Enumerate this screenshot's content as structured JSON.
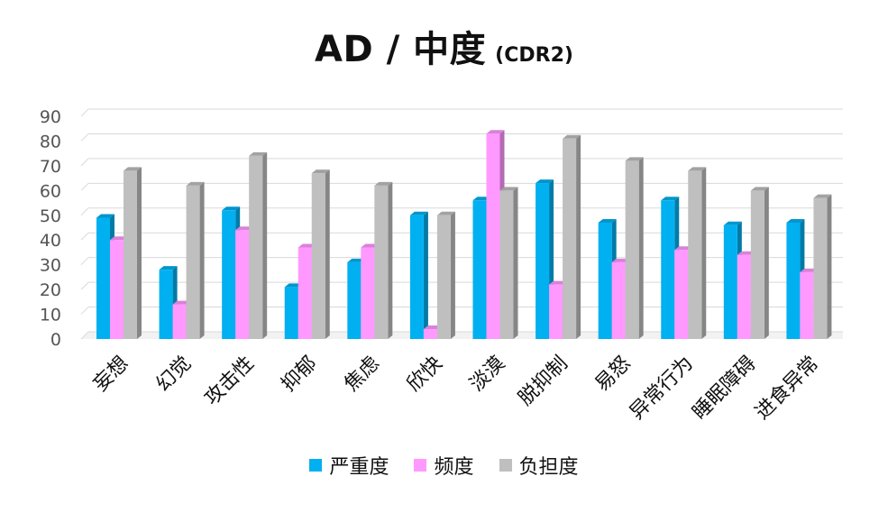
{
  "chart_data": {
    "type": "bar",
    "title": "AD / 中度",
    "subtitle": "(CDR2)",
    "categories": [
      "妄想",
      "幻觉",
      "攻击性",
      "抑郁",
      "焦虑",
      "欣快",
      "淡漠",
      "脱抑制",
      "易怒",
      "异常行为",
      "睡眠障碍",
      "进食异常"
    ],
    "series": [
      {
        "name": "严重度",
        "color": "#00b0f0",
        "values": [
          49,
          28,
          52,
          21,
          31,
          50,
          56,
          63,
          47,
          56,
          46,
          47
        ]
      },
      {
        "name": "频度",
        "color": "#ff99ff",
        "values": [
          40,
          14,
          44,
          37,
          37,
          4,
          83,
          22,
          31,
          36,
          34,
          27
        ]
      },
      {
        "name": "负担度",
        "color": "#bfbfbf",
        "values": [
          68,
          62,
          74,
          67,
          62,
          50,
          60,
          81,
          72,
          68,
          60,
          57
        ]
      }
    ],
    "yticks": [
      0,
      10,
      20,
      30,
      40,
      50,
      60,
      70,
      80,
      90
    ],
    "ylim": [
      0,
      90
    ],
    "grid": true,
    "legend_position": "bottom",
    "xlabel": "",
    "ylabel": ""
  }
}
